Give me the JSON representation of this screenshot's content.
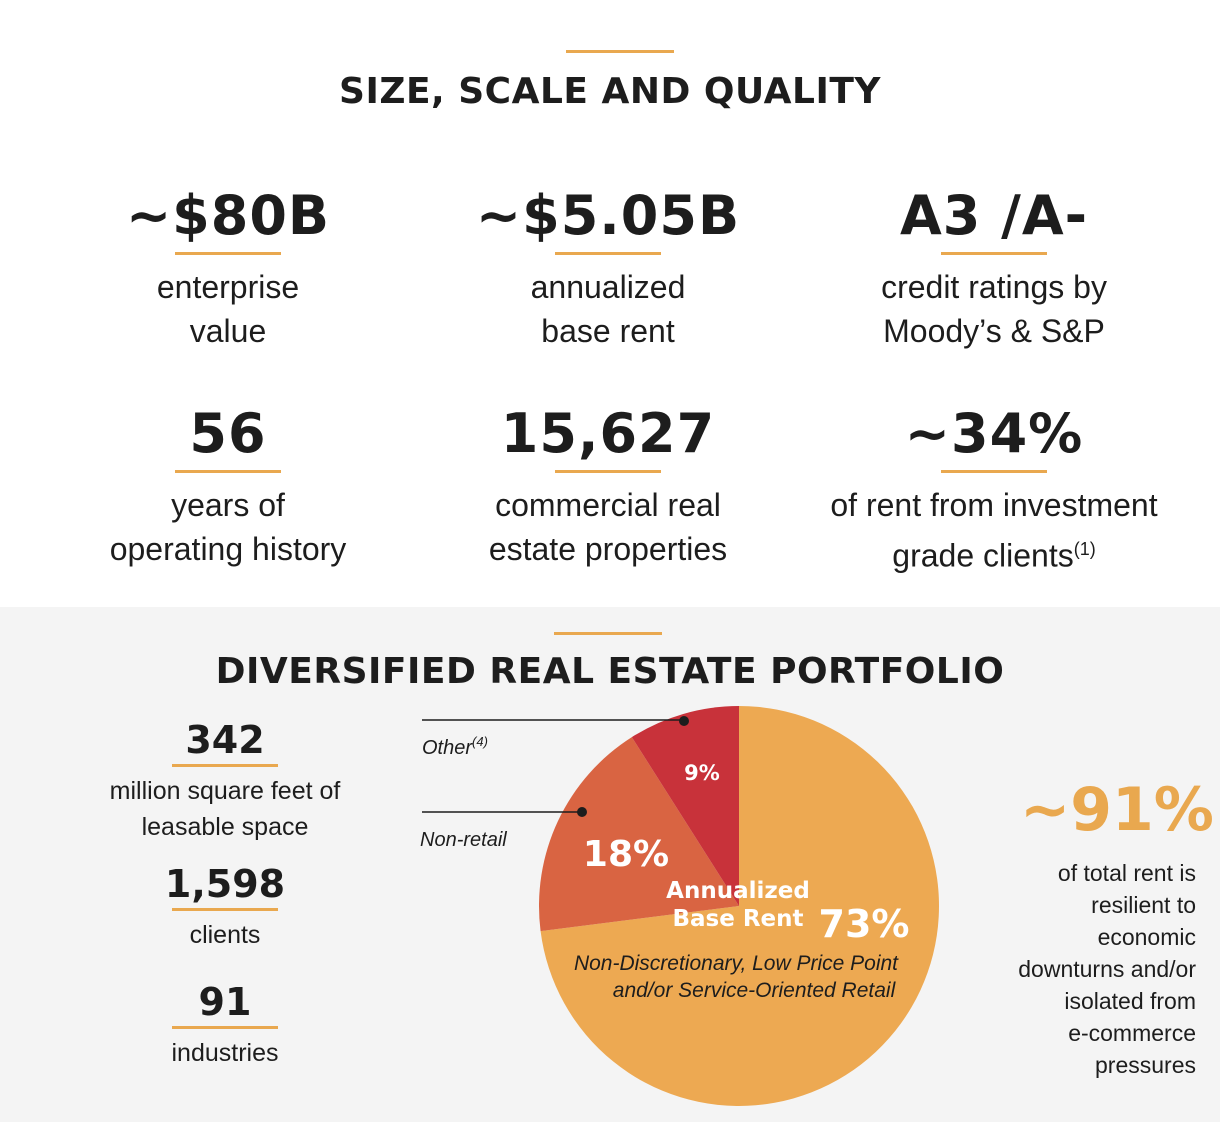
{
  "size_section": {
    "title": "SIZE, SCALE AND QUALITY",
    "stats": [
      {
        "value": "~$80B",
        "line1": "enterprise",
        "line2": "value"
      },
      {
        "value": "~$5.05B",
        "line1": "annualized",
        "line2": "base rent"
      },
      {
        "value": "A3 /A-",
        "line1": "credit ratings by",
        "line2": "Moody’s & S&P"
      },
      {
        "value": "56",
        "line1": "years of",
        "line2": "operating history"
      },
      {
        "value": "15,627",
        "line1": "commercial real",
        "line2": "estate properties"
      },
      {
        "value": "~34%",
        "line1": "of rent from investment",
        "line2": "grade clients",
        "footnote": "(1)"
      }
    ]
  },
  "portfolio_section": {
    "title": "DIVERSIFIED REAL ESTATE PORTFOLIO",
    "left_stats": [
      {
        "value": "342",
        "line1": "million square feet of",
        "line2": "leasable space"
      },
      {
        "value": "1,598",
        "line1": "clients"
      },
      {
        "value": "91",
        "line1": "industries"
      }
    ],
    "big_stat": "~91%",
    "big_stat_lines": [
      "of total rent is",
      "resilient to",
      "economic",
      "downturns and/or",
      "isolated from",
      "e-commerce",
      "pressures"
    ],
    "center_label_line1": "Annualized",
    "center_label_line2": "Base Rent",
    "retail_caption_line1": "Non-Discretionary, Low Price Point",
    "retail_caption_line2": "and/or Service-Oriented Retail",
    "other_label": "Other",
    "other_footnote": "(4)",
    "nonretail_label": "Non-retail"
  },
  "chart_data": {
    "type": "pie",
    "title": "Annualized Base Rent",
    "slices": [
      {
        "label": "Non-Discretionary, Low Price Point and/or Service-Oriented Retail",
        "value": 73,
        "display": "73%",
        "color": "#eda952"
      },
      {
        "label": "Non-retail",
        "value": 18,
        "display": "18%",
        "color": "#d96442"
      },
      {
        "label": "Other",
        "value": 9,
        "display": "9%",
        "color": "#c8323a"
      }
    ]
  },
  "colors": {
    "accent": "#e9a84f",
    "text": "#1d1d1d",
    "bottom_background": "#f4f4f4"
  }
}
